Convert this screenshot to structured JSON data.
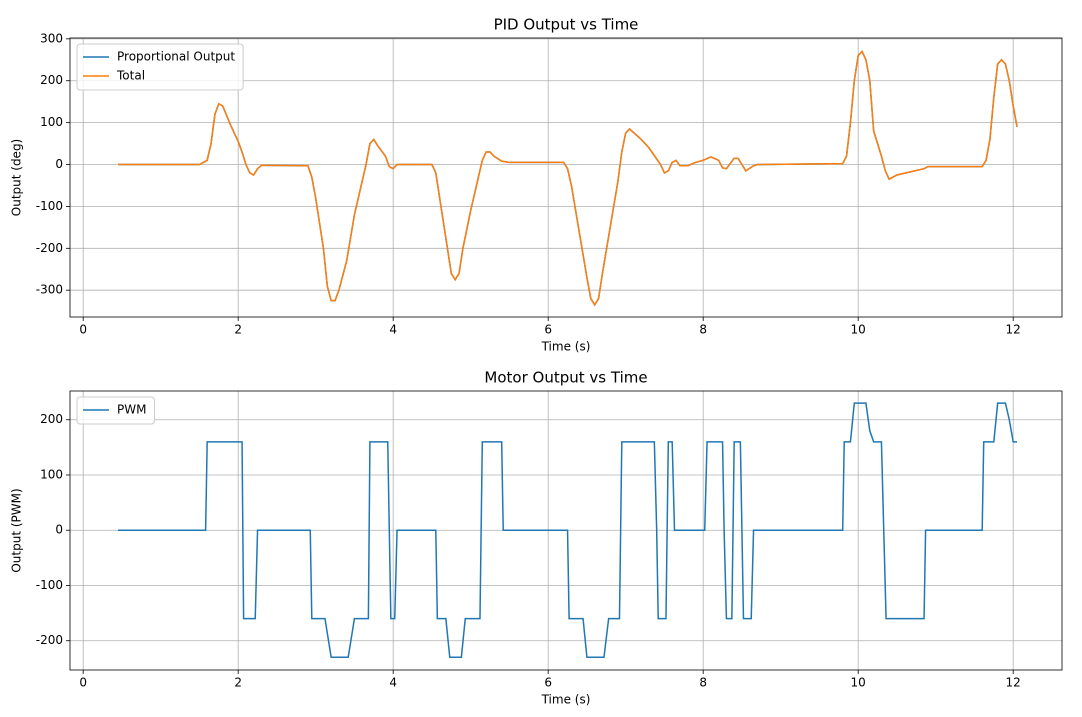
{
  "chart_data": [
    {
      "type": "line",
      "title": "PID Output vs Time",
      "xlabel": "Time (s)",
      "ylabel": "Output (deg)",
      "x": [
        0.45,
        1.5,
        1.6,
        1.65,
        1.7,
        1.75,
        1.8,
        1.9,
        2.0,
        2.05,
        2.1,
        2.15,
        2.2,
        2.25,
        2.3,
        2.4,
        2.9,
        2.95,
        3.0,
        3.1,
        3.15,
        3.2,
        3.25,
        3.3,
        3.4,
        3.5,
        3.6,
        3.65,
        3.7,
        3.75,
        3.8,
        3.9,
        3.95,
        4.0,
        4.05,
        4.1,
        4.5,
        4.55,
        4.6,
        4.7,
        4.75,
        4.8,
        4.85,
        4.9,
        5.0,
        5.1,
        5.15,
        5.2,
        5.25,
        5.3,
        5.4,
        5.5,
        6.2,
        6.25,
        6.3,
        6.4,
        6.5,
        6.55,
        6.6,
        6.65,
        6.7,
        6.8,
        6.9,
        6.95,
        7.0,
        7.05,
        7.2,
        7.3,
        7.45,
        7.5,
        7.55,
        7.6,
        7.65,
        7.7,
        7.8,
        7.9,
        8.0,
        8.1,
        8.2,
        8.25,
        8.3,
        8.4,
        8.45,
        8.5,
        8.55,
        8.65,
        8.7,
        9.8,
        9.85,
        9.9,
        9.95,
        10.0,
        10.05,
        10.1,
        10.15,
        10.2,
        10.3,
        10.35,
        10.4,
        10.45,
        10.5,
        10.85,
        10.9,
        11.6,
        11.65,
        11.7,
        11.75,
        11.8,
        11.85,
        11.9,
        11.95,
        12.0,
        12.05
      ],
      "series": [
        {
          "name": "Proportional Output",
          "color": "#1f77b4",
          "values": [
            0,
            0,
            10,
            50,
            120,
            145,
            140,
            95,
            55,
            30,
            0,
            -20,
            -25,
            -10,
            -2,
            -2,
            -3,
            -30,
            -80,
            -200,
            -290,
            -325,
            -325,
            -300,
            -230,
            -120,
            -40,
            0,
            50,
            60,
            45,
            20,
            -5,
            -10,
            0,
            0,
            0,
            -20,
            -80,
            -200,
            -260,
            -275,
            -260,
            -200,
            -110,
            -30,
            10,
            30,
            30,
            20,
            8,
            5,
            5,
            -10,
            -50,
            -160,
            -270,
            -320,
            -335,
            -320,
            -260,
            -150,
            -40,
            30,
            75,
            85,
            60,
            40,
            0,
            -20,
            -15,
            5,
            10,
            -3,
            -3,
            5,
            10,
            18,
            10,
            -8,
            -10,
            15,
            15,
            0,
            -15,
            -3,
            0,
            2,
            20,
            100,
            200,
            260,
            270,
            250,
            200,
            80,
            20,
            -15,
            -35,
            -30,
            -25,
            -10,
            -5,
            -5,
            10,
            60,
            160,
            240,
            250,
            240,
            200,
            140,
            90
          ]
        },
        {
          "name": "Total",
          "color": "#ff7f0e",
          "values": [
            0,
            0,
            10,
            50,
            120,
            145,
            140,
            95,
            55,
            30,
            0,
            -20,
            -25,
            -10,
            -2,
            -2,
            -3,
            -30,
            -80,
            -200,
            -290,
            -325,
            -325,
            -300,
            -230,
            -120,
            -40,
            0,
            50,
            60,
            45,
            20,
            -5,
            -10,
            0,
            0,
            0,
            -20,
            -80,
            -200,
            -260,
            -275,
            -260,
            -200,
            -110,
            -30,
            10,
            30,
            30,
            20,
            8,
            5,
            5,
            -10,
            -50,
            -160,
            -270,
            -320,
            -335,
            -320,
            -260,
            -150,
            -40,
            30,
            75,
            85,
            60,
            40,
            0,
            -20,
            -15,
            5,
            10,
            -3,
            -3,
            5,
            10,
            18,
            10,
            -8,
            -10,
            15,
            15,
            0,
            -15,
            -3,
            0,
            2,
            20,
            100,
            200,
            260,
            270,
            250,
            200,
            80,
            20,
            -15,
            -35,
            -30,
            -25,
            -10,
            -5,
            -5,
            10,
            60,
            160,
            240,
            250,
            240,
            200,
            140,
            90
          ]
        }
      ],
      "xlim": [
        -0.17,
        12.63
      ],
      "xticks": [
        0,
        2,
        4,
        6,
        8,
        10,
        12
      ],
      "ylim": [
        -364,
        302
      ],
      "yticks": [
        -300,
        -200,
        -100,
        0,
        100,
        200,
        300
      ],
      "grid": true,
      "legend": "upper left"
    },
    {
      "type": "line",
      "title": "Motor Output vs Time",
      "xlabel": "Time (s)",
      "ylabel": "Output (PWM)",
      "x": [
        0.45,
        1.58,
        1.6,
        2.05,
        2.07,
        2.22,
        2.25,
        2.93,
        2.95,
        3.12,
        3.2,
        3.42,
        3.5,
        3.68,
        3.7,
        3.93,
        3.95,
        3.97,
        4.02,
        4.05,
        4.55,
        4.57,
        4.68,
        4.73,
        4.88,
        4.93,
        5.12,
        5.15,
        5.4,
        5.42,
        6.25,
        6.27,
        6.45,
        6.5,
        6.72,
        6.78,
        6.92,
        6.95,
        7.37,
        7.4,
        7.42,
        7.52,
        7.55,
        7.6,
        7.63,
        8.02,
        8.05,
        8.25,
        8.27,
        8.3,
        8.37,
        8.4,
        8.48,
        8.5,
        8.52,
        8.62,
        8.65,
        9.8,
        9.82,
        9.9,
        9.95,
        10.1,
        10.15,
        10.2,
        10.3,
        10.33,
        10.36,
        10.85,
        10.87,
        11.6,
        11.62,
        11.75,
        11.8,
        11.9,
        11.95,
        12.0,
        12.05
      ],
      "series": [
        {
          "name": "PWM",
          "color": "#1f77b4",
          "values": [
            0,
            0,
            160,
            160,
            -160,
            -160,
            0,
            0,
            -160,
            -160,
            -230,
            -230,
            -160,
            -160,
            160,
            160,
            0,
            -160,
            -160,
            0,
            0,
            -160,
            -160,
            -230,
            -230,
            -160,
            -160,
            160,
            160,
            0,
            0,
            -160,
            -160,
            -230,
            -230,
            -160,
            -160,
            160,
            160,
            0,
            -160,
            -160,
            160,
            160,
            0,
            0,
            160,
            160,
            0,
            -160,
            -160,
            160,
            160,
            0,
            -160,
            -160,
            0,
            0,
            160,
            160,
            230,
            230,
            180,
            160,
            160,
            0,
            -160,
            -160,
            0,
            0,
            160,
            160,
            230,
            230,
            200,
            160,
            160
          ]
        }
      ],
      "xlim": [
        -0.17,
        12.63
      ],
      "xticks": [
        0,
        2,
        4,
        6,
        8,
        10,
        12
      ],
      "ylim": [
        -253,
        252
      ],
      "yticks": [
        -200,
        -100,
        0,
        100,
        200
      ],
      "grid": true,
      "legend": "upper left"
    }
  ]
}
